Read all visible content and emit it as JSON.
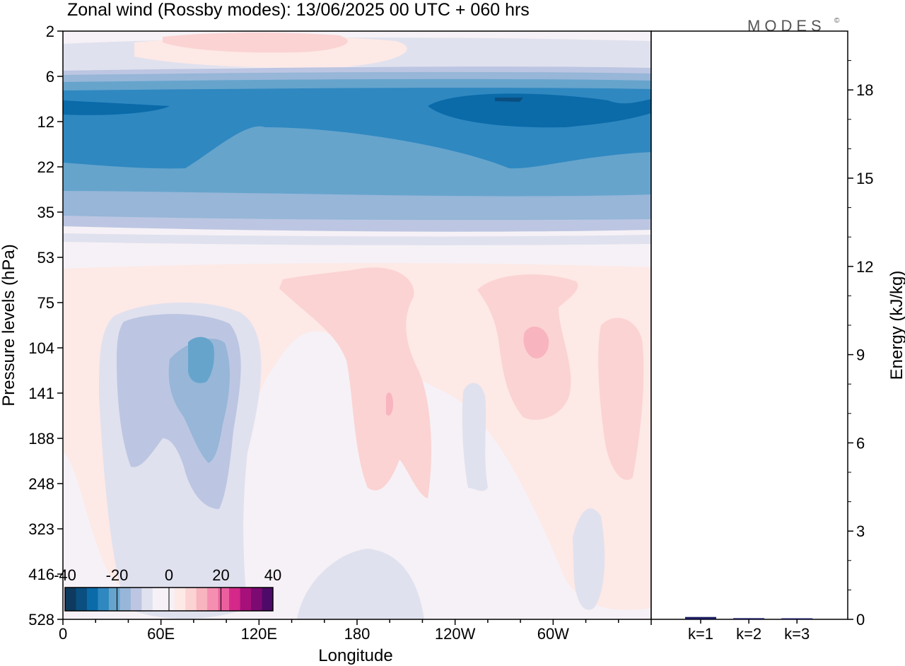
{
  "title": "Zonal wind (Rossby modes):  13/06/2025  00 UTC  + 060 hrs",
  "logo": "MODES",
  "logo_mark": "©",
  "colors": {
    "neg": [
      "#0d3a5e",
      "#0a4f80",
      "#0b6aa8",
      "#2f88c0",
      "#66a4cc",
      "#97b6d8",
      "#bcc6e2",
      "#e0e1ee"
    ],
    "zero": "#f6f1f6",
    "pos": [
      "#fde9e6",
      "#fbd3d3",
      "#f8b4bf",
      "#f58fb1",
      "#ec5f9f",
      "#d4298a",
      "#a70f7a",
      "#7d0a72",
      "#4e0a68"
    ]
  },
  "chart_data": [
    {
      "type": "heatmap",
      "title": "Zonal wind (Rossby modes):  13/06/2025  00 UTC  + 060 hrs",
      "xlabel": "Longitude",
      "ylabel": "Pressure levels (hPa)",
      "x_ticks": [
        "0",
        "60E",
        "120E",
        "180",
        "120W",
        "60W"
      ],
      "y_ticks": [
        "2",
        "6",
        "12",
        "22",
        "35",
        "53",
        "75",
        "104",
        "141",
        "188",
        "248",
        "323",
        "416",
        "528"
      ],
      "colorbar_ticks": [
        "-40",
        "-20",
        "0",
        "20",
        "40"
      ],
      "colorbar_range": [
        -40,
        40
      ],
      "features": [
        {
          "lon": 80,
          "p": 10,
          "value": -30
        },
        {
          "lon": 280,
          "p": 10,
          "value": -32
        },
        {
          "lon": 180,
          "p": 17,
          "value": -25
        },
        {
          "lon": 80,
          "p": 125,
          "value": -18
        },
        {
          "lon": 195,
          "p": 145,
          "value": 9
        },
        {
          "lon": 300,
          "p": 110,
          "value": 8
        },
        {
          "lon": 100,
          "p": 3,
          "value": 4
        }
      ]
    },
    {
      "type": "bar",
      "categories": [
        "k=1",
        "k=2",
        "k=3"
      ],
      "values": [
        0.08,
        0.04,
        0.02
      ],
      "ylabel": "Energy (kJ/kg)",
      "y_ticks": [
        "0",
        "3",
        "6",
        "9",
        "12",
        "15",
        "18"
      ],
      "ylim": [
        0,
        20
      ]
    }
  ]
}
